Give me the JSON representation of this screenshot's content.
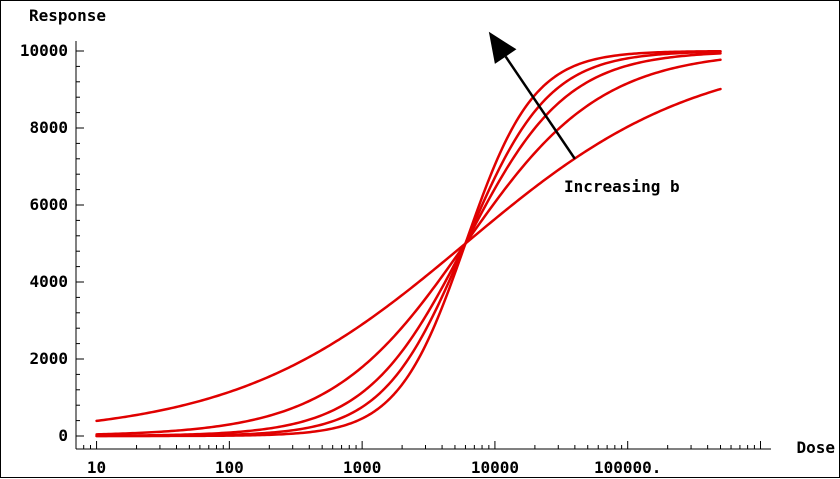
{
  "chart_data": {
    "type": "line",
    "xlabel": "Dose",
    "ylabel": "Response",
    "x_scale": "log",
    "xlim": [
      7,
      1200000
    ],
    "ylim": [
      0,
      10000
    ],
    "x_ticks": [
      {
        "value": 10,
        "label": "10"
      },
      {
        "value": 100,
        "label": "100"
      },
      {
        "value": 1000,
        "label": "1000"
      },
      {
        "value": 10000,
        "label": "10000"
      },
      {
        "value": 100000,
        "label": "100000."
      }
    ],
    "y_ticks": [
      {
        "value": 0,
        "label": "0"
      },
      {
        "value": 2000,
        "label": "2000"
      },
      {
        "value": 4000,
        "label": "4000"
      },
      {
        "value": 6000,
        "label": "6000"
      },
      {
        "value": 8000,
        "label": "8000"
      },
      {
        "value": 10000,
        "label": "10000"
      }
    ],
    "grid": false,
    "line_color": "#e00000",
    "series_model": {
      "top": 10000,
      "ec50": 6000,
      "bottom": 0,
      "x_min": 10,
      "x_max": 500000
    },
    "series": [
      {
        "hill_b": 0.5
      },
      {
        "hill_b": 0.85
      },
      {
        "hill_b": 1.15
      },
      {
        "hill_b": 1.4
      },
      {
        "hill_b": 1.7
      }
    ],
    "annotation": {
      "text": "Increasing b",
      "arrow": {
        "from": {
          "x": 40000,
          "y": 7200
        },
        "to": {
          "x": 9000,
          "y": 10500
        }
      }
    }
  }
}
